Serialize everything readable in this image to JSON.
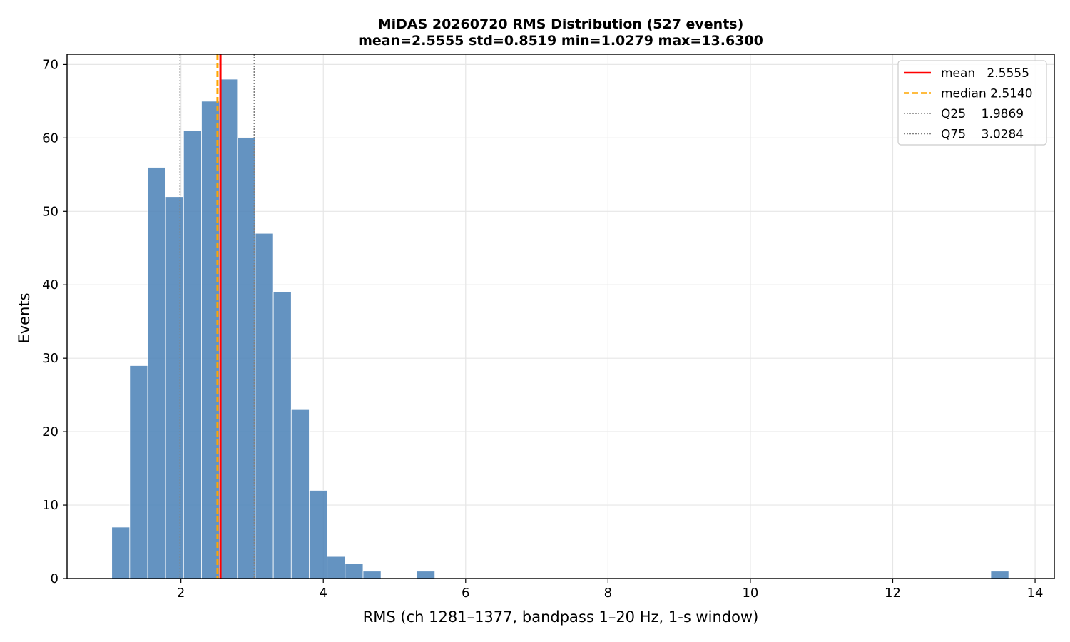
{
  "chart_data": {
    "type": "bar",
    "title": "MiDAS 20260720  RMS Distribution  (527 events)",
    "subtitle": "mean=2.5555  std=0.8519  min=1.0279  max=13.6300",
    "xlabel": "RMS  (ch 1281–1377, bandpass 1–20 Hz, 1-s window)",
    "ylabel": "Events",
    "xlim": [
      0.4,
      14.27
    ],
    "ylim": [
      0,
      71.4
    ],
    "xticks": [
      2,
      4,
      6,
      8,
      10,
      12,
      14
    ],
    "yticks": [
      0,
      10,
      20,
      30,
      40,
      50,
      60,
      70
    ],
    "grid": true,
    "bar_color": "#4f84b8",
    "bins": [
      {
        "x0": 1.0279,
        "x1": 1.2801,
        "count": 7
      },
      {
        "x0": 1.2801,
        "x1": 1.5323,
        "count": 29
      },
      {
        "x0": 1.5323,
        "x1": 1.7845,
        "count": 56
      },
      {
        "x0": 1.7845,
        "x1": 2.0367,
        "count": 52
      },
      {
        "x0": 2.0367,
        "x1": 2.2889,
        "count": 61
      },
      {
        "x0": 2.2889,
        "x1": 2.5411,
        "count": 65
      },
      {
        "x0": 2.5411,
        "x1": 2.7933,
        "count": 68
      },
      {
        "x0": 2.7933,
        "x1": 3.0455,
        "count": 60
      },
      {
        "x0": 3.0455,
        "x1": 3.2977,
        "count": 47
      },
      {
        "x0": 3.2977,
        "x1": 3.5499,
        "count": 39
      },
      {
        "x0": 3.5499,
        "x1": 3.8021,
        "count": 23
      },
      {
        "x0": 3.8021,
        "x1": 4.0543,
        "count": 12
      },
      {
        "x0": 4.0543,
        "x1": 4.3065,
        "count": 3
      },
      {
        "x0": 4.3065,
        "x1": 4.5587,
        "count": 2
      },
      {
        "x0": 4.5587,
        "x1": 4.8109,
        "count": 1
      },
      {
        "x0": 5.3153,
        "x1": 5.5675,
        "count": 1
      },
      {
        "x0": 13.3778,
        "x1": 13.63,
        "count": 1
      }
    ],
    "lines": [
      {
        "key": "mean",
        "value": 2.5555,
        "color": "#ff0000",
        "style": "solid"
      },
      {
        "key": "median",
        "value": 2.514,
        "color": "#ffa500",
        "style": "dashed"
      },
      {
        "key": "q25",
        "value": 1.9869,
        "color": "#808080",
        "style": "dotted"
      },
      {
        "key": "q75",
        "value": 3.0284,
        "color": "#808080",
        "style": "dotted"
      }
    ],
    "legend": {
      "position": "top-right",
      "entries": [
        {
          "label": "mean   2.5555",
          "color": "#ff0000",
          "style": "solid"
        },
        {
          "label": "median 2.5140",
          "color": "#ffa500",
          "style": "dashed"
        },
        {
          "label": "Q25    1.9869",
          "color": "#808080",
          "style": "dotted"
        },
        {
          "label": "Q75    3.0284",
          "color": "#808080",
          "style": "dotted"
        }
      ]
    }
  }
}
